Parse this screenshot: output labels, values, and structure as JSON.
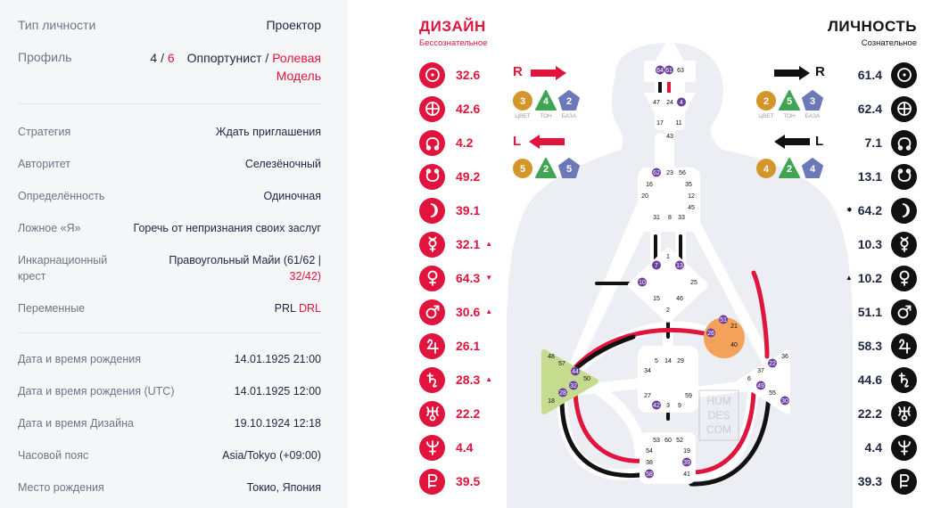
{
  "profile": {
    "type_label": "Тип личности",
    "type_value": "Проектор",
    "profile_label": "Профиль",
    "profile_line1": "4",
    "profile_slash": "/",
    "profile_line2": "6",
    "profile_name1": "Оппортунист",
    "profile_name_slash": "/",
    "profile_name2": "Ролевая",
    "profile_name3": "Модель",
    "strategy_label": "Стратегия",
    "strategy_value": "Ждать приглашения",
    "authority_label": "Авторитет",
    "authority_value": "Селезёночный",
    "definition_label": "Определённость",
    "definition_value": "Одиночная",
    "notself_label": "Ложное «Я»",
    "notself_value": "Горечь от непризнания своих заслуг",
    "cross_label1": "Инкарнационный",
    "cross_label2": "крест",
    "cross_value1": "Правоугольный Майи (61/62 |",
    "cross_value2": "32/42)",
    "variables_label": "Переменные",
    "variables_value1": "PRL",
    "variables_value2": "DRL",
    "birth_label": "Дата и время рождения",
    "birth_value": "14.01.1925 21:00",
    "birth_utc_label": "Дата и время рождения (UTC)",
    "birth_utc_value": "14.01.1925 12:00",
    "design_date_label": "Дата и время Дизайна",
    "design_date_value": "19.10.1924 12:18",
    "tz_label": "Часовой пояс",
    "tz_value": "Asia/Tokyo (+09:00)",
    "place_label": "Место рождения",
    "place_value": "Токио, Япония"
  },
  "design": {
    "title": "ДИЗАЙН",
    "subtitle": "Бессознательное",
    "planets": [
      {
        "icon": "sun-icon",
        "value": "32.6",
        "mark": ""
      },
      {
        "icon": "earth-icon",
        "value": "42.6",
        "mark": ""
      },
      {
        "icon": "north-node-icon",
        "value": "4.2",
        "mark": ""
      },
      {
        "icon": "south-node-icon",
        "value": "49.2",
        "mark": ""
      },
      {
        "icon": "moon-icon",
        "value": "39.1",
        "mark": ""
      },
      {
        "icon": "mercury-icon",
        "value": "32.1",
        "mark": "▲"
      },
      {
        "icon": "venus-icon",
        "value": "64.3",
        "mark": "▼"
      },
      {
        "icon": "mars-icon",
        "value": "30.6",
        "mark": "▲"
      },
      {
        "icon": "jupiter-icon",
        "value": "26.1",
        "mark": ""
      },
      {
        "icon": "saturn-icon",
        "value": "28.3",
        "mark": "▲"
      },
      {
        "icon": "uranus-icon",
        "value": "22.2",
        "mark": ""
      },
      {
        "icon": "neptune-icon",
        "value": "4.4",
        "mark": ""
      },
      {
        "icon": "pluto-icon",
        "value": "39.5",
        "mark": ""
      }
    ],
    "arrow_top_label": "R",
    "arrow_bottom_label": "L",
    "top_shapes": [
      "3",
      "4",
      "2"
    ],
    "bottom_shapes": [
      "5",
      "2",
      "5"
    ],
    "shape_labels": [
      "ЦВЕТ",
      "ТОН",
      "БАЗА"
    ]
  },
  "personality": {
    "title": "ЛИЧНОСТЬ",
    "subtitle": "Сознательное",
    "planets": [
      {
        "icon": "sun-icon",
        "value": "61.4",
        "mark": ""
      },
      {
        "icon": "earth-icon",
        "value": "62.4",
        "mark": ""
      },
      {
        "icon": "north-node-icon",
        "value": "7.1",
        "mark": ""
      },
      {
        "icon": "south-node-icon",
        "value": "13.1",
        "mark": ""
      },
      {
        "icon": "moon-icon",
        "value": "64.2",
        "mark": "✸"
      },
      {
        "icon": "mercury-icon",
        "value": "10.3",
        "mark": ""
      },
      {
        "icon": "venus-icon",
        "value": "10.2",
        "mark": "▲"
      },
      {
        "icon": "mars-icon",
        "value": "51.1",
        "mark": ""
      },
      {
        "icon": "jupiter-icon",
        "value": "58.3",
        "mark": ""
      },
      {
        "icon": "saturn-icon",
        "value": "44.6",
        "mark": ""
      },
      {
        "icon": "uranus-icon",
        "value": "22.2",
        "mark": ""
      },
      {
        "icon": "neptune-icon",
        "value": "4.4",
        "mark": ""
      },
      {
        "icon": "pluto-icon",
        "value": "39.3",
        "mark": ""
      }
    ],
    "arrow_top_label": "R",
    "arrow_bottom_label": "L",
    "top_shapes": [
      "2",
      "5",
      "3"
    ],
    "bottom_shapes": [
      "4",
      "2",
      "4"
    ],
    "shape_labels": [
      "ЦВЕТ",
      "ТОН",
      "БАЗА"
    ]
  },
  "bodygraph": {
    "watermark": [
      "HUM",
      "DES",
      "COM"
    ],
    "head_gates": [
      "64",
      "61",
      "63"
    ],
    "ajna_gates": [
      "47",
      "24",
      "4",
      "17",
      "11",
      "43"
    ],
    "throat_gates": [
      "62",
      "23",
      "56",
      "16",
      "35",
      "20",
      "12",
      "45",
      "31",
      "8",
      "33"
    ],
    "g_gates": [
      "1",
      "7",
      "13",
      "10",
      "25",
      "15",
      "46",
      "2"
    ],
    "ego_gates": [
      "51",
      "21",
      "26",
      "40"
    ],
    "spleen_gates": [
      "48",
      "57",
      "44",
      "50",
      "32",
      "28",
      "18"
    ],
    "sacral_gates": [
      "5",
      "14",
      "29",
      "34",
      "27",
      "59",
      "42",
      "3",
      "9"
    ],
    "solar_gates": [
      "36",
      "22",
      "37",
      "6",
      "49",
      "55",
      "30"
    ],
    "root_gates": [
      "53",
      "60",
      "52",
      "54",
      "19",
      "38",
      "39",
      "58",
      "41"
    ]
  },
  "colors": {
    "accent": "#e0143c",
    "dark": "#111111",
    "orange": "#f4a259",
    "green": "#c5dc8e",
    "purple": "#6b3fa0",
    "chip_orange": "#d4952a",
    "chip_green": "#3fa554",
    "chip_blue": "#6b79b8"
  }
}
